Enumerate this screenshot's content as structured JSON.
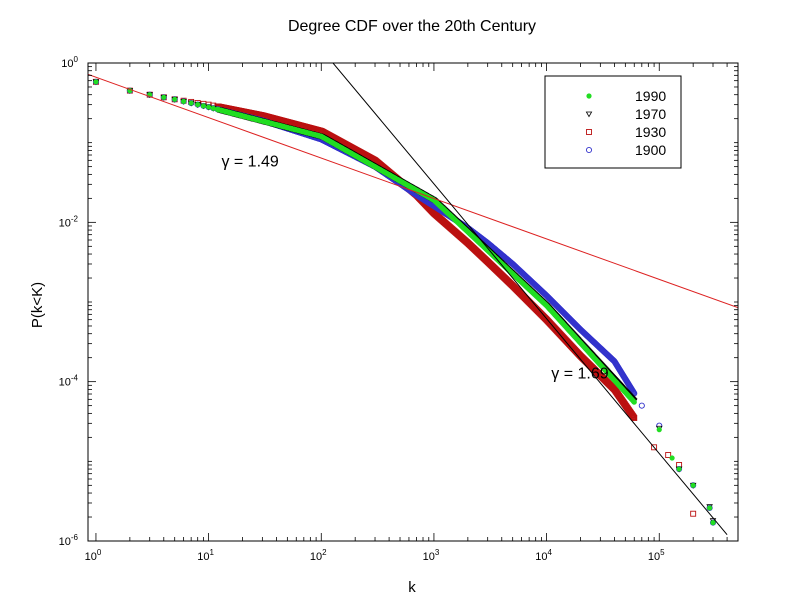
{
  "chart_data": {
    "type": "scatter",
    "title": "Degree CDF over the 20th Century",
    "xlabel": "k",
    "ylabel": "P(k<K)",
    "xscale": "log",
    "yscale": "log",
    "xlim": [
      0.85,
      500000
    ],
    "ylim": [
      1e-06,
      1
    ],
    "x_ticks": [
      {
        "base": "10",
        "exp": "0",
        "value": 1
      },
      {
        "base": "10",
        "exp": "1",
        "value": 10
      },
      {
        "base": "10",
        "exp": "2",
        "value": 100
      },
      {
        "base": "10",
        "exp": "3",
        "value": 1000
      },
      {
        "base": "10",
        "exp": "4",
        "value": 10000
      },
      {
        "base": "10",
        "exp": "5",
        "value": 100000
      }
    ],
    "y_ticks": [
      {
        "base": "10",
        "exp": "0",
        "value": 1
      },
      {
        "base": "10",
        "exp": "-2",
        "value": 0.01
      },
      {
        "base": "10",
        "exp": "-4",
        "value": 0.0001
      },
      {
        "base": "10",
        "exp": "-6",
        "value": 1e-06
      }
    ],
    "grid": false,
    "legend_position": "top-right",
    "series": [
      {
        "name": "1990",
        "marker": "filled-circle",
        "color": "#22dd22",
        "x": [
          1,
          2,
          3,
          5,
          10,
          100,
          1000,
          10000,
          100000,
          130000,
          150000,
          200000,
          280000,
          300000
        ],
        "y": [
          0.58,
          0.45,
          0.4,
          0.35,
          0.28,
          0.12,
          0.019,
          0.0009,
          2.5e-05,
          1.1e-05,
          8e-06,
          5e-06,
          2.6e-06,
          1.7e-06
        ]
      },
      {
        "name": "1970",
        "marker": "down-triangle",
        "color": "#000000",
        "x": [
          1,
          2,
          3,
          5,
          10,
          100,
          1000,
          10000,
          100000,
          150000,
          200000,
          280000,
          300000
        ],
        "y": [
          0.58,
          0.45,
          0.4,
          0.35,
          0.28,
          0.12,
          0.019,
          0.0009,
          2.6e-05,
          8e-06,
          5e-06,
          2.7e-06,
          1.8e-06
        ]
      },
      {
        "name": "1930",
        "marker": "open-square",
        "color": "#bb1111",
        "x": [
          1,
          2,
          3,
          5,
          10,
          30,
          100,
          300,
          700,
          1000,
          2000,
          3000,
          5000,
          10000,
          20000,
          40000,
          60000,
          90000,
          120000,
          150000,
          200000
        ],
        "y": [
          0.58,
          0.45,
          0.4,
          0.35,
          0.3,
          0.22,
          0.14,
          0.06,
          0.022,
          0.013,
          0.0055,
          0.0032,
          0.0016,
          0.0006,
          0.00021,
          8e-05,
          3.5e-05,
          1.5e-05,
          1.2e-05,
          9e-06,
          2.2e-06
        ]
      },
      {
        "name": "1900",
        "marker": "open-circle",
        "color": "#3333cc",
        "x": [
          1,
          2,
          3,
          5,
          10,
          30,
          100,
          300,
          700,
          1000,
          2000,
          3000,
          5000,
          10000,
          20000,
          40000,
          70000,
          100000,
          150000,
          200000,
          280000,
          300000
        ],
        "y": [
          0.58,
          0.45,
          0.4,
          0.35,
          0.28,
          0.19,
          0.11,
          0.05,
          0.022,
          0.016,
          0.0085,
          0.0055,
          0.003,
          0.0012,
          0.00045,
          0.00018,
          5e-05,
          2.8e-05,
          8e-06,
          5e-06,
          2.6e-06,
          1.7e-06
        ]
      }
    ],
    "fit_lines": [
      {
        "name": "fit-1.49",
        "color": "#dd2222",
        "x": [
          0.85,
          500000
        ],
        "y": [
          0.72,
          0.00085
        ]
      },
      {
        "name": "fit-1.69",
        "color": "#000000",
        "x": [
          120,
          400000
        ],
        "y": [
          1.1,
          1.2e-06
        ]
      }
    ],
    "annotations": [
      {
        "label": "γ = 1.49",
        "x": 13,
        "y": 0.05
      },
      {
        "label": "γ = 1.69",
        "x": 11000,
        "y": 0.00011
      }
    ]
  }
}
